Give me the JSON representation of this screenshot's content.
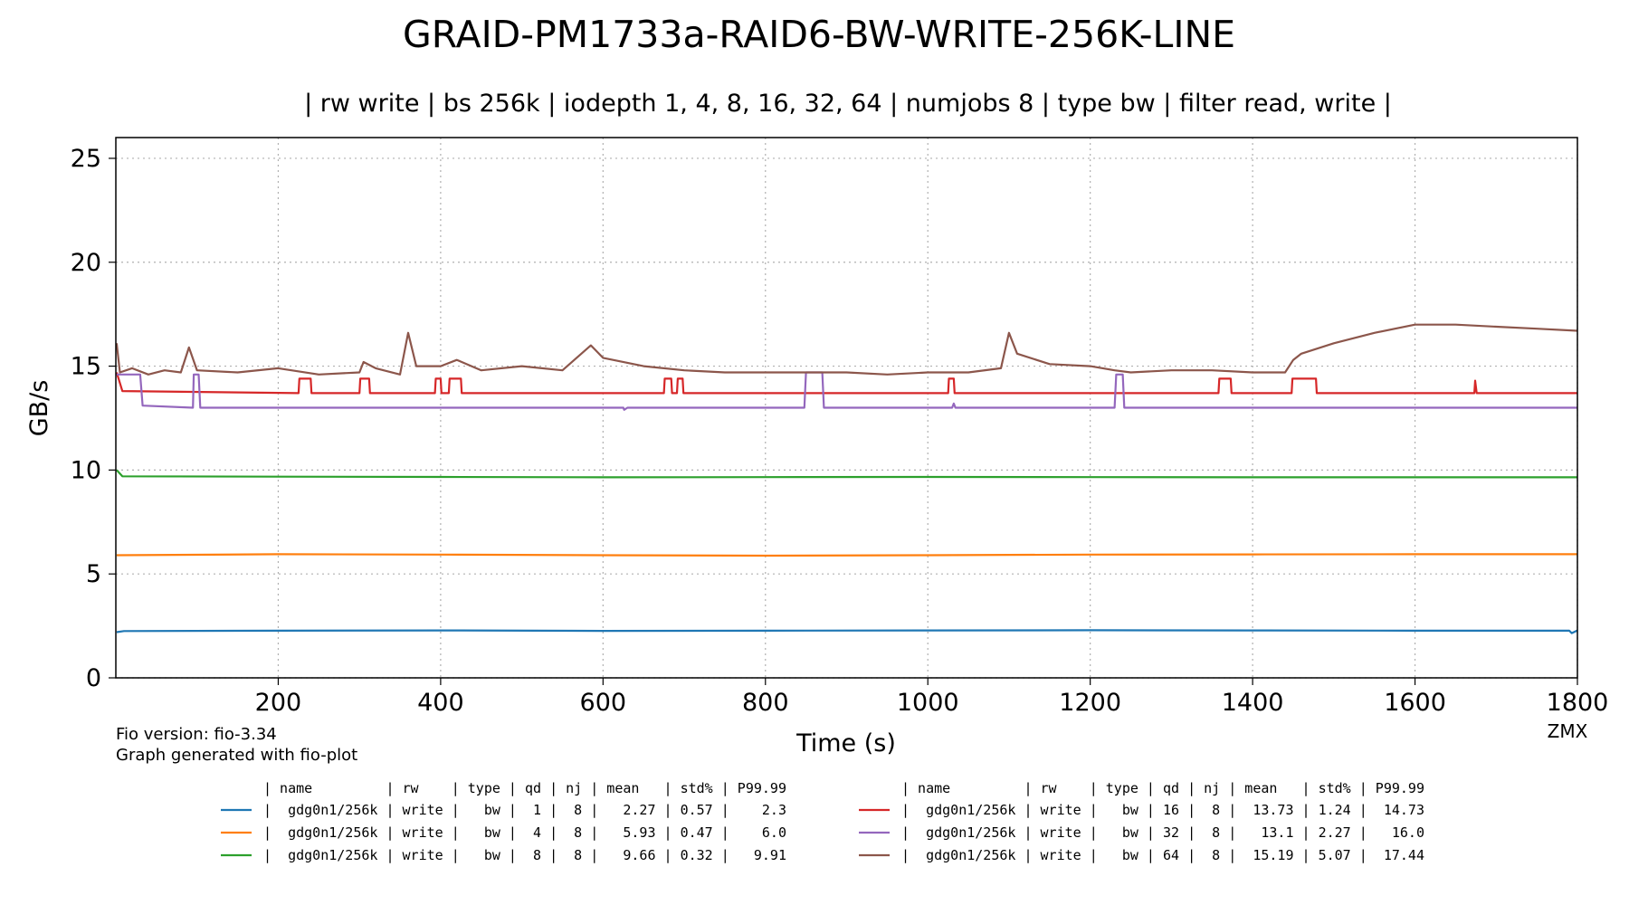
{
  "chart_data": {
    "type": "line",
    "title": "GRAID-PM1733a-RAID6-BW-WRITE-256K-LINE",
    "subtitle": "| rw write | bs 256k | iodepth 1, 4, 8, 16, 32, 64 | numjobs 8 | type bw | filter read, write |",
    "xlabel": "Time (s)",
    "ylabel": "GB/s",
    "xlim": [
      0,
      1800
    ],
    "ylim": [
      0,
      26
    ],
    "xticks": [
      200,
      400,
      600,
      800,
      1000,
      1200,
      1400,
      1600,
      1800
    ],
    "yticks": [
      0,
      5,
      10,
      15,
      20,
      25
    ],
    "grid": true,
    "series": [
      {
        "name": "gdg0n1/256k",
        "color": "#1f77b4",
        "rw": "write",
        "type": "bw",
        "qd": "1",
        "nj": "8",
        "mean": "2.27",
        "std": "0.57",
        "p99": "2.3",
        "points": [
          [
            1,
            2.2
          ],
          [
            10,
            2.25
          ],
          [
            200,
            2.27
          ],
          [
            400,
            2.28
          ],
          [
            600,
            2.26
          ],
          [
            800,
            2.27
          ],
          [
            1000,
            2.28
          ],
          [
            1200,
            2.29
          ],
          [
            1400,
            2.28
          ],
          [
            1600,
            2.27
          ],
          [
            1790,
            2.27
          ],
          [
            1793,
            2.15
          ],
          [
            1800,
            2.28
          ]
        ]
      },
      {
        "name": "gdg0n1/256k",
        "color": "#ff7f0e",
        "rw": "write",
        "type": "bw",
        "qd": "4",
        "nj": "8",
        "mean": "5.93",
        "std": "0.47",
        "p99": "6.0",
        "points": [
          [
            1,
            5.9
          ],
          [
            200,
            5.95
          ],
          [
            400,
            5.93
          ],
          [
            600,
            5.9
          ],
          [
            800,
            5.88
          ],
          [
            1000,
            5.9
          ],
          [
            1200,
            5.93
          ],
          [
            1400,
            5.94
          ],
          [
            1600,
            5.95
          ],
          [
            1800,
            5.95
          ]
        ]
      },
      {
        "name": "gdg0n1/256k",
        "color": "#2ca02c",
        "rw": "write",
        "type": "bw",
        "qd": "8",
        "nj": "8",
        "mean": "9.66",
        "std": "0.32",
        "p99": "9.91",
        "points": [
          [
            1,
            10.0
          ],
          [
            8,
            9.7
          ],
          [
            200,
            9.68
          ],
          [
            400,
            9.67
          ],
          [
            600,
            9.65
          ],
          [
            800,
            9.66
          ],
          [
            1000,
            9.67
          ],
          [
            1200,
            9.66
          ],
          [
            1400,
            9.65
          ],
          [
            1600,
            9.65
          ],
          [
            1800,
            9.65
          ]
        ]
      },
      {
        "name": "gdg0n1/256k",
        "color": "#d62728",
        "rw": "write",
        "type": "bw",
        "qd": "16",
        "nj": "8",
        "mean": "13.73",
        "std": "1.24",
        "p99": "14.73",
        "points": [
          [
            1,
            14.7
          ],
          [
            8,
            13.8
          ],
          [
            225,
            13.7
          ],
          [
            226,
            14.4
          ],
          [
            240,
            14.4
          ],
          [
            241,
            13.7
          ],
          [
            300,
            13.7
          ],
          [
            301,
            14.4
          ],
          [
            312,
            14.4
          ],
          [
            313,
            13.7
          ],
          [
            393,
            13.7
          ],
          [
            394,
            14.4
          ],
          [
            400,
            14.4
          ],
          [
            401,
            13.7
          ],
          [
            410,
            13.7
          ],
          [
            411,
            14.4
          ],
          [
            425,
            14.4
          ],
          [
            426,
            13.7
          ],
          [
            675,
            13.7
          ],
          [
            676,
            14.4
          ],
          [
            684,
            14.4
          ],
          [
            685,
            13.7
          ],
          [
            691,
            13.7
          ],
          [
            692,
            14.4
          ],
          [
            698,
            14.4
          ],
          [
            699,
            13.7
          ],
          [
            1025,
            13.7
          ],
          [
            1026,
            14.4
          ],
          [
            1032,
            14.4
          ],
          [
            1033,
            13.7
          ],
          [
            1358,
            13.7
          ],
          [
            1359,
            14.4
          ],
          [
            1373,
            14.4
          ],
          [
            1374,
            13.7
          ],
          [
            1448,
            13.7
          ],
          [
            1449,
            14.4
          ],
          [
            1478,
            14.4
          ],
          [
            1479,
            13.7
          ],
          [
            1673,
            13.7
          ],
          [
            1674,
            14.3
          ],
          [
            1676,
            13.7
          ],
          [
            1800,
            13.7
          ]
        ]
      },
      {
        "name": "gdg0n1/256k",
        "color": "#9467bd",
        "rw": "write",
        "type": "bw",
        "qd": "32",
        "nj": "8",
        "mean": "13.1",
        "std": "2.27",
        "p99": "16.0",
        "points": [
          [
            1,
            14.6
          ],
          [
            30,
            14.6
          ],
          [
            33,
            13.1
          ],
          [
            95,
            13.0
          ],
          [
            96,
            14.6
          ],
          [
            102,
            14.6
          ],
          [
            104,
            13.0
          ],
          [
            625,
            13.0
          ],
          [
            626,
            12.9
          ],
          [
            630,
            13.0
          ],
          [
            848,
            13.0
          ],
          [
            850,
            14.7
          ],
          [
            870,
            14.7
          ],
          [
            872,
            13.0
          ],
          [
            1030,
            13.0
          ],
          [
            1032,
            13.2
          ],
          [
            1034,
            13.0
          ],
          [
            1230,
            13.0
          ],
          [
            1232,
            14.6
          ],
          [
            1240,
            14.6
          ],
          [
            1242,
            13.0
          ],
          [
            1800,
            13.0
          ]
        ]
      },
      {
        "name": "gdg0n1/256k",
        "color": "#8c564b",
        "rw": "write",
        "type": "bw",
        "qd": "64",
        "nj": "8",
        "mean": "15.19",
        "std": "5.07",
        "p99": "17.44",
        "points": [
          [
            1,
            16.1
          ],
          [
            5,
            14.7
          ],
          [
            20,
            14.9
          ],
          [
            40,
            14.6
          ],
          [
            60,
            14.8
          ],
          [
            80,
            14.7
          ],
          [
            90,
            15.9
          ],
          [
            100,
            14.8
          ],
          [
            150,
            14.7
          ],
          [
            200,
            14.9
          ],
          [
            250,
            14.6
          ],
          [
            300,
            14.7
          ],
          [
            305,
            15.2
          ],
          [
            320,
            14.9
          ],
          [
            350,
            14.6
          ],
          [
            360,
            16.6
          ],
          [
            370,
            15.0
          ],
          [
            400,
            15.0
          ],
          [
            420,
            15.3
          ],
          [
            450,
            14.8
          ],
          [
            500,
            15.0
          ],
          [
            550,
            14.8
          ],
          [
            585,
            16.0
          ],
          [
            600,
            15.4
          ],
          [
            650,
            15.0
          ],
          [
            700,
            14.8
          ],
          [
            750,
            14.7
          ],
          [
            800,
            14.7
          ],
          [
            850,
            14.7
          ],
          [
            900,
            14.7
          ],
          [
            950,
            14.6
          ],
          [
            1000,
            14.7
          ],
          [
            1050,
            14.7
          ],
          [
            1090,
            14.9
          ],
          [
            1100,
            16.6
          ],
          [
            1110,
            15.6
          ],
          [
            1150,
            15.1
          ],
          [
            1200,
            15.0
          ],
          [
            1230,
            14.8
          ],
          [
            1250,
            14.7
          ],
          [
            1300,
            14.8
          ],
          [
            1350,
            14.8
          ],
          [
            1400,
            14.7
          ],
          [
            1440,
            14.7
          ],
          [
            1450,
            15.3
          ],
          [
            1460,
            15.6
          ],
          [
            1500,
            16.1
          ],
          [
            1550,
            16.6
          ],
          [
            1600,
            17.0
          ],
          [
            1650,
            17.0
          ],
          [
            1700,
            16.9
          ],
          [
            1750,
            16.8
          ],
          [
            1800,
            16.7
          ]
        ]
      }
    ]
  },
  "footer": {
    "fio_version": "Fio version: fio-3.34",
    "generated": "Graph generated with fio-plot",
    "watermark": "ZMX"
  },
  "legend_table": {
    "headers": [
      "name",
      "rw",
      "type",
      "qd",
      "nj",
      "mean",
      "std%",
      "P99.99"
    ]
  }
}
